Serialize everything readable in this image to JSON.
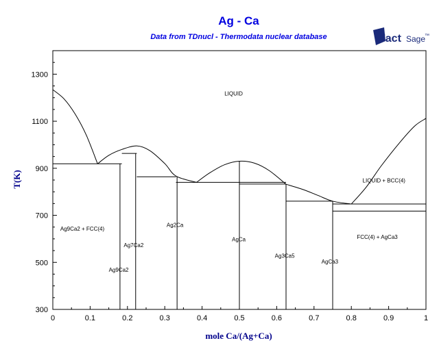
{
  "chart_data": {
    "type": "line",
    "title": "Ag - Ca",
    "subtitle": "Data from TDnucl - Thermodata nuclear database",
    "xlabel": "mole Ca/(Ag+Ca)",
    "ylabel": "T(K)",
    "xlim": [
      0,
      1
    ],
    "ylim": [
      300,
      1400
    ],
    "xticks": [
      "0",
      "0.1",
      "0.2",
      "0.3",
      "0.4",
      "0.5",
      "0.6",
      "0.7",
      "0.8",
      "0.9",
      "1"
    ],
    "yticks": [
      "300",
      "500",
      "700",
      "900",
      "1100",
      "1300"
    ],
    "grid": false,
    "series": [
      {
        "points": [
          [
            0,
            1234
          ],
          [
            0.03,
            1195
          ],
          [
            0.06,
            1130
          ],
          [
            0.09,
            1040
          ],
          [
            0.12,
            919
          ]
        ]
      },
      {
        "points": [
          [
            0.12,
            919
          ],
          [
            0.15,
            955
          ],
          [
            0.185,
            980
          ],
          [
            0.225,
            995
          ],
          [
            0.26,
            975
          ],
          [
            0.3,
            920
          ],
          [
            0.33,
            867
          ],
          [
            0.385,
            840
          ]
        ]
      },
      {
        "points": [
          [
            0.385,
            840
          ],
          [
            0.42,
            880
          ],
          [
            0.46,
            915
          ],
          [
            0.5,
            930
          ],
          [
            0.54,
            922
          ],
          [
            0.58,
            890
          ],
          [
            0.625,
            832
          ]
        ]
      },
      {
        "points": [
          [
            0.625,
            832
          ],
          [
            0.67,
            810
          ],
          [
            0.71,
            785
          ],
          [
            0.75,
            760
          ],
          [
            0.8,
            748
          ]
        ]
      },
      {
        "points": [
          [
            0.8,
            748
          ],
          [
            0.84,
            820
          ],
          [
            0.88,
            910
          ],
          [
            0.93,
            1010
          ],
          [
            0.97,
            1080
          ],
          [
            1,
            1112
          ]
        ]
      }
    ],
    "isotherms": [
      {
        "x": [
          0,
          0.185
        ],
        "y": 919
      },
      {
        "x": [
          0.185,
          0.225
        ],
        "y": 963
      },
      {
        "x": [
          0.225,
          0.33
        ],
        "y": 864
      },
      {
        "x": [
          0.33,
          0.625
        ],
        "y": 840
      },
      {
        "x": [
          0.5,
          0.625
        ],
        "y": 833
      },
      {
        "x": [
          0.625,
          0.75
        ],
        "y": 760
      },
      {
        "x": [
          0.75,
          1
        ],
        "y": 748
      },
      {
        "x": [
          0.75,
          1
        ],
        "y": 718
      }
    ],
    "compound_lines": [
      {
        "x": 0.18,
        "ytop": 919
      },
      {
        "x": 0.222,
        "ytop": 963
      },
      {
        "x": 0.333,
        "ytop": 864
      },
      {
        "x": 0.5,
        "ytop": 930
      },
      {
        "x": 0.625,
        "ytop": 833
      },
      {
        "x": 0.75,
        "ytop": 760
      }
    ],
    "annotations": [
      {
        "text": "LIQUID",
        "x": 0.46,
        "y": 1210
      },
      {
        "text": "LIQUID + BCC(4)",
        "x": 0.83,
        "y": 840
      },
      {
        "text": "Ag9Ca2 + FCC(4)",
        "x": 0.02,
        "y": 635
      },
      {
        "text": "Ag2Ca",
        "x": 0.305,
        "y": 650
      },
      {
        "text": "Ag7Ca2",
        "x": 0.19,
        "y": 565
      },
      {
        "text": "AgCa",
        "x": 0.48,
        "y": 590
      },
      {
        "text": "Ag3Ca5",
        "x": 0.595,
        "y": 520
      },
      {
        "text": "AgCa3",
        "x": 0.72,
        "y": 495
      },
      {
        "text": "Ag9Ca2",
        "x": 0.15,
        "y": 460
      },
      {
        "text": "FCC(4) + AgCa3",
        "x": 0.815,
        "y": 600
      }
    ]
  },
  "logo": {
    "name": "FactSage",
    "text_main": "Fact",
    "text_sub": "Sage",
    "tm": "™",
    "color": "#1a2a7a"
  }
}
